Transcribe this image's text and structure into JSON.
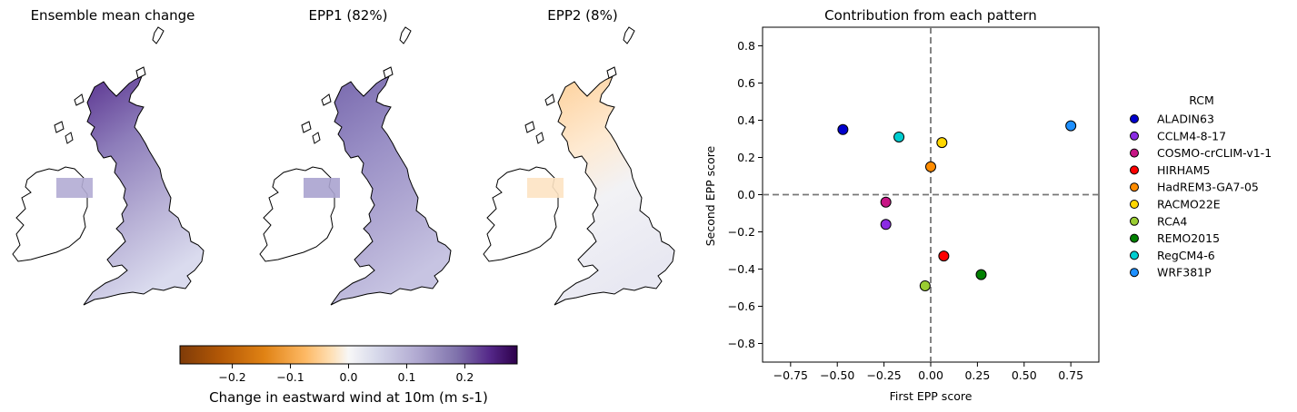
{
  "maps": [
    {
      "title": "Ensemble mean change",
      "pattern": "ensemble_mean"
    },
    {
      "title": "EPP1 (82%)",
      "pattern": "epp1"
    },
    {
      "title": "EPP2 (8%)",
      "pattern": "epp2"
    }
  ],
  "colorbar": {
    "label": "Change in eastward wind at 10m (m s-1)",
    "range": [
      -0.29,
      0.29
    ],
    "ticks": [
      -0.2,
      -0.1,
      0.0,
      0.1,
      0.2
    ],
    "tick_labels": [
      "−0.2",
      "−0.1",
      "0.0",
      "0.1",
      "0.2"
    ],
    "colormap": "PuOr (orange negative, purple positive)"
  },
  "chart_data": {
    "type": "scatter",
    "title": "Contribution from each pattern",
    "xlabel": "First EPP score",
    "ylabel": "Second EPP score",
    "xlim": [
      -0.9,
      0.9
    ],
    "ylim": [
      -0.9,
      0.9
    ],
    "xticks": [
      -0.75,
      -0.5,
      -0.25,
      0.0,
      0.25,
      0.5,
      0.75
    ],
    "xtick_labels": [
      "−0.75",
      "−0.50",
      "−0.25",
      "0.00",
      "0.25",
      "0.50",
      "0.75"
    ],
    "yticks": [
      -0.8,
      -0.6,
      -0.4,
      -0.2,
      0.0,
      0.2,
      0.4,
      0.6,
      0.8
    ],
    "ytick_labels": [
      "−0.8",
      "−0.6",
      "−0.4",
      "−0.2",
      "0.0",
      "0.2",
      "0.4",
      "0.6",
      "0.8"
    ],
    "reference_lines": {
      "x": 0,
      "y": 0,
      "style": "dashed"
    },
    "grid": false,
    "legend": {
      "title": "RCM",
      "placement": "outside-right"
    },
    "series": [
      {
        "name": "ALADIN63",
        "color": "#0000cd",
        "x": -0.47,
        "y": 0.35
      },
      {
        "name": "CCLM4-8-17",
        "color": "#8a2be2",
        "x": -0.24,
        "y": -0.16
      },
      {
        "name": "COSMO-crCLIM-v1-1",
        "color": "#c71585",
        "x": -0.24,
        "y": -0.04
      },
      {
        "name": "HIRHAM5",
        "color": "#ff0000",
        "x": 0.07,
        "y": -0.33
      },
      {
        "name": "HadREM3-GA7-05",
        "color": "#ff8c00",
        "x": 0.0,
        "y": 0.15
      },
      {
        "name": "RACMO22E",
        "color": "#ffd700",
        "x": 0.06,
        "y": 0.28
      },
      {
        "name": "RCA4",
        "color": "#9acd32",
        "x": -0.03,
        "y": -0.49
      },
      {
        "name": "REMO2015",
        "color": "#008000",
        "x": 0.27,
        "y": -0.43
      },
      {
        "name": "RegCM4-6",
        "color": "#00ced1",
        "x": -0.17,
        "y": 0.31
      },
      {
        "name": "WRF381P",
        "color": "#1e90ff",
        "x": 0.75,
        "y": 0.37
      }
    ]
  }
}
